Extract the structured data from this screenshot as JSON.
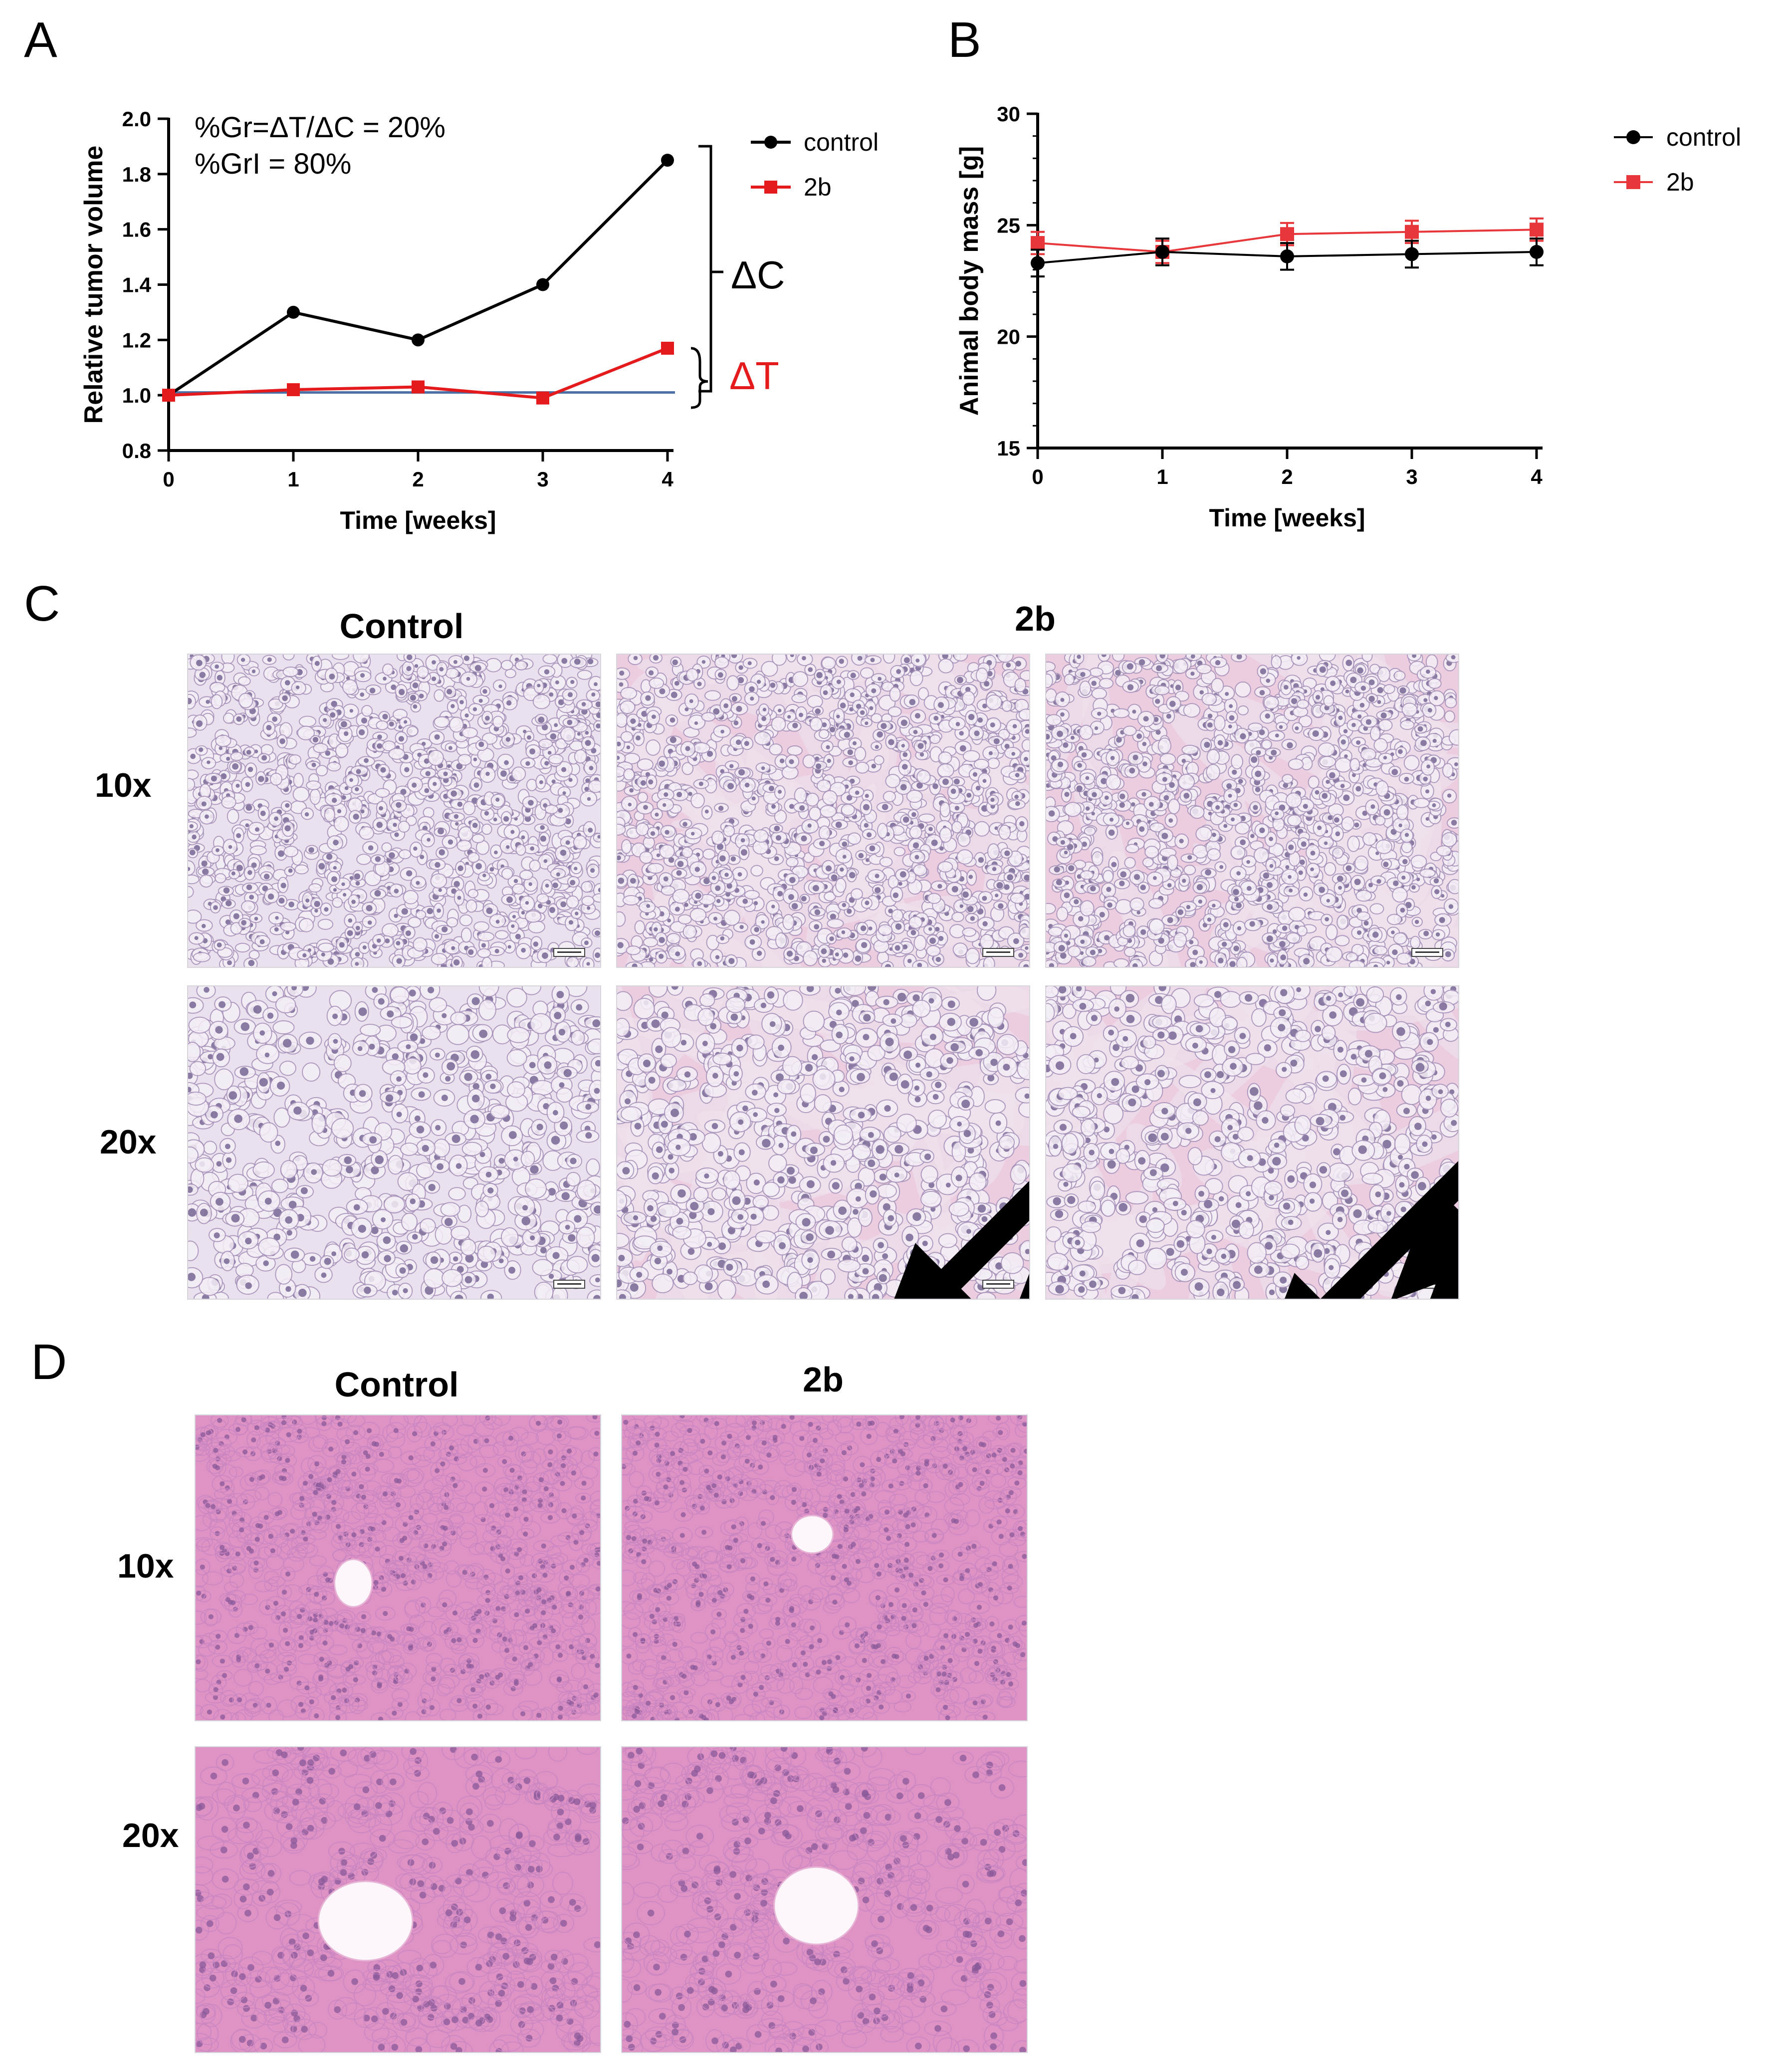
{
  "panels": {
    "a_letter": "A",
    "b_letter": "B",
    "c_letter": "C",
    "d_letter": "D"
  },
  "chart_data": [
    {
      "panel": "A",
      "type": "line",
      "x": [
        0,
        1,
        2,
        3,
        4
      ],
      "xticks": [
        "0",
        "1",
        "2",
        "3",
        "4"
      ],
      "yticks": [
        "0.8",
        "1.0",
        "1.2",
        "1.4",
        "1.6",
        "1.8",
        "2.0"
      ],
      "xlabel": "Time [weeks]",
      "ylabel": "Relative tumor volume",
      "xlim": [
        0,
        4
      ],
      "ylim": [
        0.8,
        2.0
      ],
      "series": [
        {
          "name": "control",
          "values": [
            1.0,
            1.3,
            1.2,
            1.4,
            1.85
          ],
          "color": "#000000",
          "marker": "circle"
        },
        {
          "name": "2b",
          "values": [
            1.0,
            1.02,
            1.03,
            0.99,
            1.17
          ],
          "color": "#e41a1c",
          "marker": "square"
        }
      ],
      "baseline": {
        "value": 1.01,
        "color": "#4a6fa5"
      },
      "annotations": {
        "line1": "%Gr=ΔT/ΔC = 20%",
        "line2": "%GrI = 80%",
        "delta_c": "ΔC",
        "delta_t": "ΔT"
      },
      "legend": [
        "control",
        "2b"
      ],
      "legend_position": "top-right"
    },
    {
      "panel": "B",
      "type": "line",
      "x": [
        0,
        1,
        2,
        3,
        4
      ],
      "xticks": [
        "0",
        "1",
        "2",
        "3",
        "4"
      ],
      "yticks": [
        "15",
        "20",
        "25",
        "30"
      ],
      "xlabel": "Time [weeks]",
      "ylabel": "Animal body mass [g]",
      "xlim": [
        0,
        4
      ],
      "ylim": [
        15,
        30
      ],
      "series": [
        {
          "name": "control",
          "values": [
            23.3,
            23.8,
            23.6,
            23.7,
            23.8
          ],
          "errors": [
            0.6,
            0.6,
            0.6,
            0.6,
            0.6
          ],
          "color": "#000000",
          "marker": "circle"
        },
        {
          "name": "2b",
          "values": [
            24.2,
            23.8,
            24.6,
            24.7,
            24.8
          ],
          "errors": [
            0.5,
            0.5,
            0.5,
            0.5,
            0.5
          ],
          "color": "#e8373a",
          "marker": "square"
        }
      ],
      "legend": [
        "control",
        "2b"
      ],
      "legend_position": "top-right"
    }
  ],
  "panel_c": {
    "col_control": "Control",
    "col_2b": "2b",
    "row_10x": "10x",
    "row_20x": "20x"
  },
  "panel_d": {
    "col_control": "Control",
    "col_2b": "2b",
    "row_10x": "10x",
    "row_20x": "20x"
  },
  "colors": {
    "tumor_bg": "#e9e1ee",
    "tumor_cell": "#a590b8",
    "tumor_nucleus": "#5d4a80",
    "stroma": "#eccde0",
    "liver_bg": "#df93c5",
    "liver_cell": "#c986c0",
    "liver_nucleus": "#8a5a9a"
  }
}
